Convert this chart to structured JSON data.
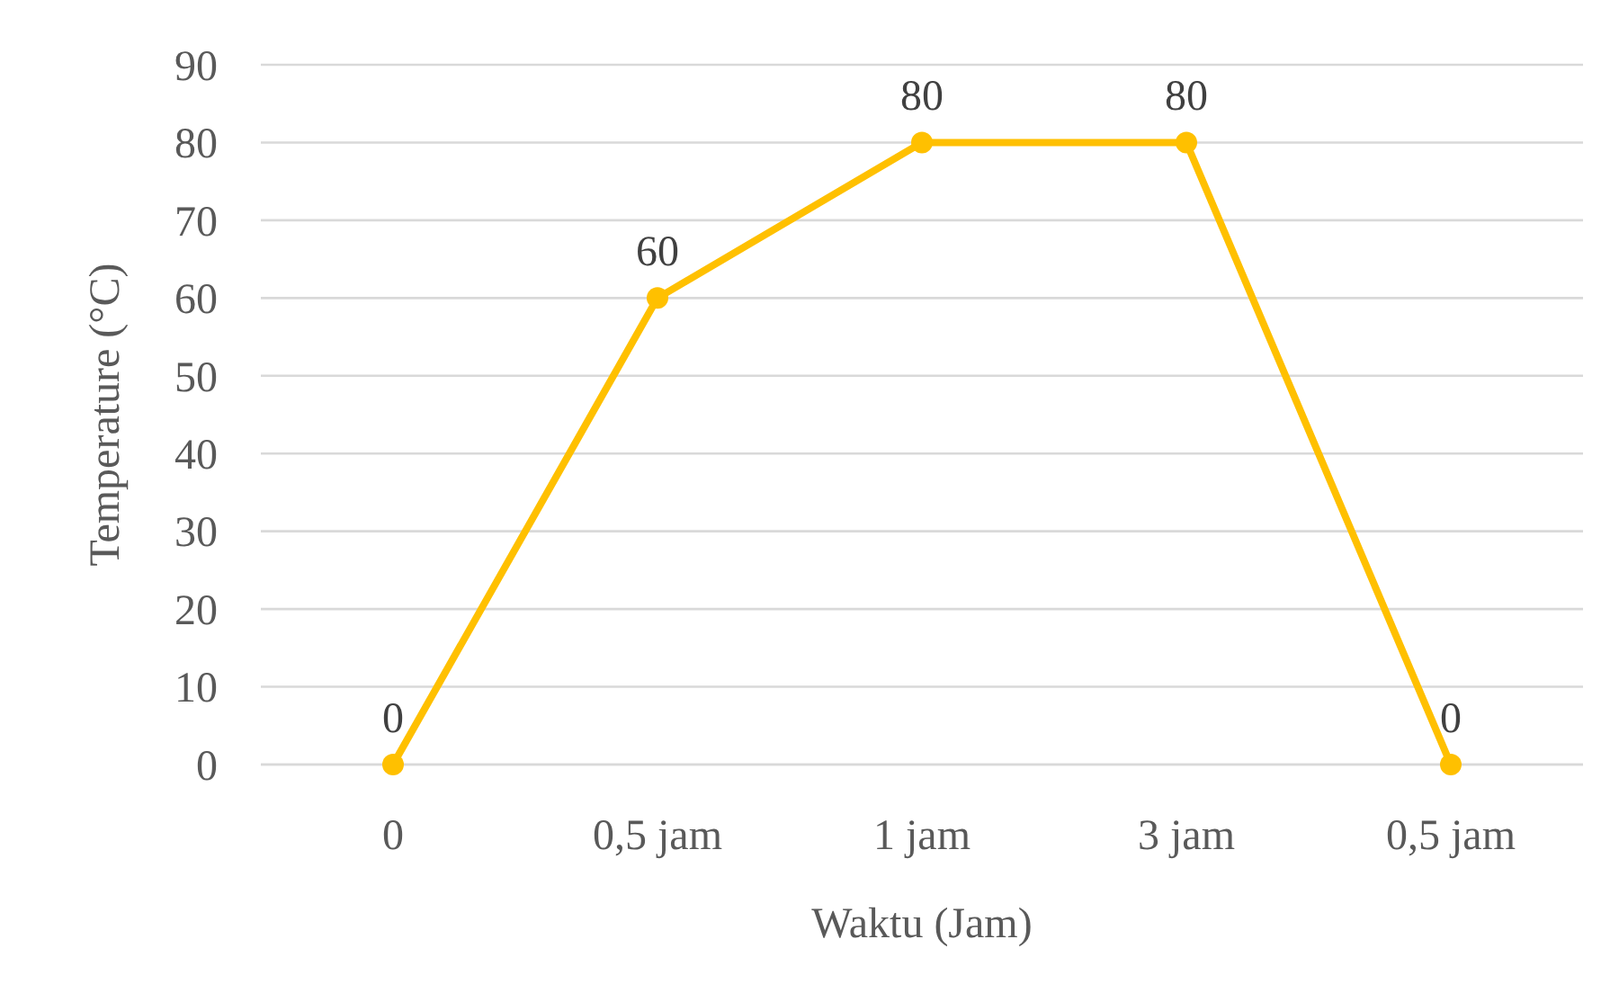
{
  "chart_data": {
    "type": "line",
    "xlabel": "Waktu (Jam)",
    "ylabel": "Temperature (°C)",
    "categories": [
      "0",
      "0,5 jam",
      "1 jam",
      "3 jam",
      "0,5 jam"
    ],
    "series": [
      {
        "color": "#ffc000",
        "values": [
          0,
          60,
          80,
          80,
          0
        ]
      }
    ],
    "ylim": [
      0,
      90
    ],
    "yticks": [
      0,
      10,
      20,
      30,
      40,
      50,
      60,
      70,
      80,
      90
    ],
    "grid": "y",
    "marker": "circle",
    "line_style": "solid",
    "data_labels": true
  }
}
